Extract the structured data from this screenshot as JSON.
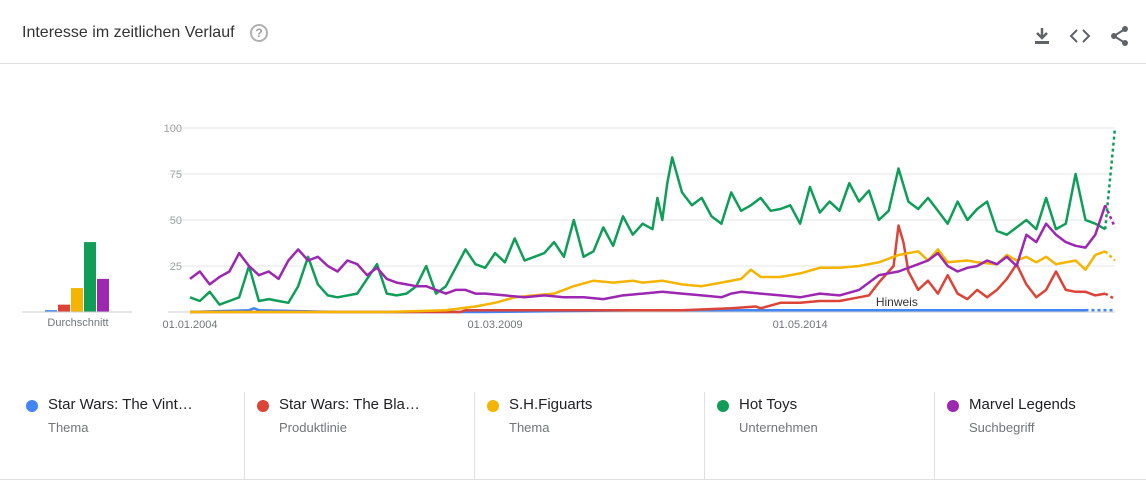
{
  "header": {
    "title": "Interesse im zeitlichen Verlauf",
    "help_icon": "help-circle-icon",
    "download_icon": "download-icon",
    "embed_icon": "code-embed-icon",
    "share_icon": "share-icon"
  },
  "chart_data": {
    "type": "line",
    "title": "Interesse im zeitlichen Verlauf",
    "ylim": [
      0,
      100
    ],
    "y_ticks": [
      100,
      75,
      50,
      25
    ],
    "x_tick_labels": [
      "01.01.2004",
      "01.03.2009",
      "01.05.2014"
    ],
    "x_tick_months": [
      0,
      62,
      124
    ],
    "note_label": "Hinweis",
    "note_month": 140,
    "x_range_months": [
      0,
      188
    ],
    "average": {
      "label": "Durchschnitt",
      "values": [
        1,
        4,
        13,
        38,
        18
      ]
    },
    "series": [
      {
        "name": "Star Wars: The Vint…",
        "category": "Thema",
        "color": "#4285f4",
        "points": [
          [
            0,
            0
          ],
          [
            12,
            1
          ],
          [
            13,
            2
          ],
          [
            14,
            1
          ],
          [
            30,
            0
          ],
          [
            60,
            0
          ],
          [
            90,
            1
          ],
          [
            100,
            1
          ],
          [
            110,
            1
          ],
          [
            120,
            1
          ],
          [
            126,
            1
          ],
          [
            140,
            1
          ],
          [
            150,
            1
          ],
          [
            165,
            1
          ],
          [
            170,
            1
          ],
          [
            178,
            1
          ],
          [
            182,
            1
          ],
          [
            188,
            1
          ]
        ]
      },
      {
        "name": "Star Wars: The Bla…",
        "category": "Produktlinie",
        "color": "#db4437",
        "points": [
          [
            0,
            0
          ],
          [
            20,
            0
          ],
          [
            40,
            0
          ],
          [
            55,
            0
          ],
          [
            56,
            1
          ],
          [
            70,
            1
          ],
          [
            80,
            1
          ],
          [
            90,
            1
          ],
          [
            100,
            1
          ],
          [
            110,
            2
          ],
          [
            115,
            3
          ],
          [
            116,
            2
          ],
          [
            120,
            5
          ],
          [
            124,
            5
          ],
          [
            128,
            6
          ],
          [
            132,
            6
          ],
          [
            136,
            8
          ],
          [
            138,
            9
          ],
          [
            140,
            16
          ],
          [
            143,
            25
          ],
          [
            144,
            47
          ],
          [
            145,
            38
          ],
          [
            146,
            22
          ],
          [
            148,
            12
          ],
          [
            150,
            17
          ],
          [
            152,
            10
          ],
          [
            154,
            20
          ],
          [
            156,
            10
          ],
          [
            158,
            7
          ],
          [
            160,
            12
          ],
          [
            162,
            8
          ],
          [
            164,
            12
          ],
          [
            166,
            18
          ],
          [
            168,
            26
          ],
          [
            170,
            15
          ],
          [
            172,
            8
          ],
          [
            174,
            12
          ],
          [
            176,
            22
          ],
          [
            178,
            12
          ],
          [
            180,
            11
          ],
          [
            182,
            11
          ],
          [
            184,
            9
          ],
          [
            186,
            10
          ],
          [
            188,
            7
          ]
        ]
      },
      {
        "name": "S.H.Figuarts",
        "category": "Thema",
        "color": "#f4b400",
        "points": [
          [
            0,
            0
          ],
          [
            40,
            0
          ],
          [
            52,
            1
          ],
          [
            58,
            3
          ],
          [
            62,
            5
          ],
          [
            66,
            8
          ],
          [
            70,
            9
          ],
          [
            74,
            10
          ],
          [
            78,
            14
          ],
          [
            82,
            17
          ],
          [
            86,
            16
          ],
          [
            90,
            17
          ],
          [
            92,
            16
          ],
          [
            96,
            17
          ],
          [
            100,
            15
          ],
          [
            104,
            14
          ],
          [
            108,
            16
          ],
          [
            112,
            18
          ],
          [
            114,
            23
          ],
          [
            116,
            19
          ],
          [
            120,
            19
          ],
          [
            124,
            21
          ],
          [
            128,
            24
          ],
          [
            132,
            24
          ],
          [
            136,
            25
          ],
          [
            140,
            27
          ],
          [
            144,
            31
          ],
          [
            148,
            33
          ],
          [
            150,
            28
          ],
          [
            152,
            34
          ],
          [
            154,
            27
          ],
          [
            158,
            28
          ],
          [
            160,
            27
          ],
          [
            164,
            26
          ],
          [
            166,
            31
          ],
          [
            168,
            28
          ],
          [
            170,
            30
          ],
          [
            172,
            27
          ],
          [
            174,
            30
          ],
          [
            176,
            26
          ],
          [
            180,
            28
          ],
          [
            182,
            23
          ],
          [
            184,
            31
          ],
          [
            186,
            33
          ],
          [
            188,
            28
          ]
        ]
      },
      {
        "name": "Hot Toys",
        "category": "Unternehmen",
        "color": "#0f9d58",
        "points": [
          [
            0,
            8
          ],
          [
            2,
            6
          ],
          [
            4,
            11
          ],
          [
            6,
            4
          ],
          [
            8,
            6
          ],
          [
            10,
            8
          ],
          [
            12,
            25
          ],
          [
            14,
            6
          ],
          [
            16,
            7
          ],
          [
            18,
            6
          ],
          [
            20,
            5
          ],
          [
            22,
            14
          ],
          [
            24,
            30
          ],
          [
            26,
            15
          ],
          [
            28,
            9
          ],
          [
            30,
            8
          ],
          [
            34,
            10
          ],
          [
            36,
            18
          ],
          [
            38,
            26
          ],
          [
            40,
            10
          ],
          [
            42,
            9
          ],
          [
            44,
            10
          ],
          [
            46,
            14
          ],
          [
            48,
            25
          ],
          [
            50,
            10
          ],
          [
            52,
            14
          ],
          [
            54,
            24
          ],
          [
            56,
            34
          ],
          [
            58,
            26
          ],
          [
            60,
            24
          ],
          [
            62,
            32
          ],
          [
            64,
            27
          ],
          [
            66,
            40
          ],
          [
            68,
            28
          ],
          [
            70,
            30
          ],
          [
            72,
            32
          ],
          [
            74,
            38
          ],
          [
            76,
            30
          ],
          [
            78,
            50
          ],
          [
            80,
            30
          ],
          [
            82,
            33
          ],
          [
            84,
            46
          ],
          [
            86,
            36
          ],
          [
            88,
            52
          ],
          [
            90,
            42
          ],
          [
            92,
            48
          ],
          [
            94,
            45
          ],
          [
            95,
            62
          ],
          [
            96,
            50
          ],
          [
            97,
            70
          ],
          [
            98,
            84
          ],
          [
            100,
            65
          ],
          [
            102,
            58
          ],
          [
            104,
            62
          ],
          [
            106,
            52
          ],
          [
            108,
            48
          ],
          [
            110,
            65
          ],
          [
            112,
            55
          ],
          [
            114,
            58
          ],
          [
            116,
            62
          ],
          [
            118,
            55
          ],
          [
            120,
            56
          ],
          [
            122,
            58
          ],
          [
            124,
            48
          ],
          [
            126,
            68
          ],
          [
            128,
            54
          ],
          [
            130,
            60
          ],
          [
            132,
            55
          ],
          [
            134,
            70
          ],
          [
            136,
            60
          ],
          [
            138,
            66
          ],
          [
            140,
            50
          ],
          [
            142,
            55
          ],
          [
            144,
            78
          ],
          [
            146,
            60
          ],
          [
            148,
            56
          ],
          [
            150,
            62
          ],
          [
            152,
            55
          ],
          [
            154,
            48
          ],
          [
            156,
            60
          ],
          [
            158,
            50
          ],
          [
            160,
            56
          ],
          [
            162,
            60
          ],
          [
            164,
            44
          ],
          [
            166,
            42
          ],
          [
            168,
            46
          ],
          [
            170,
            50
          ],
          [
            172,
            45
          ],
          [
            174,
            62
          ],
          [
            176,
            45
          ],
          [
            178,
            48
          ],
          [
            180,
            75
          ],
          [
            182,
            50
          ],
          [
            184,
            48
          ],
          [
            186,
            45
          ],
          [
            188,
            100
          ]
        ]
      },
      {
        "name": "Marvel Legends",
        "category": "Suchbegriff",
        "color": "#9c27b0",
        "points": [
          [
            0,
            18
          ],
          [
            2,
            22
          ],
          [
            4,
            15
          ],
          [
            6,
            19
          ],
          [
            8,
            22
          ],
          [
            10,
            32
          ],
          [
            12,
            25
          ],
          [
            14,
            20
          ],
          [
            16,
            22
          ],
          [
            18,
            18
          ],
          [
            20,
            28
          ],
          [
            22,
            34
          ],
          [
            24,
            28
          ],
          [
            26,
            30
          ],
          [
            28,
            25
          ],
          [
            30,
            22
          ],
          [
            32,
            28
          ],
          [
            34,
            26
          ],
          [
            36,
            20
          ],
          [
            38,
            24
          ],
          [
            40,
            18
          ],
          [
            42,
            16
          ],
          [
            44,
            15
          ],
          [
            46,
            14
          ],
          [
            48,
            14
          ],
          [
            50,
            12
          ],
          [
            52,
            10
          ],
          [
            54,
            12
          ],
          [
            56,
            12
          ],
          [
            58,
            10
          ],
          [
            60,
            10
          ],
          [
            64,
            9
          ],
          [
            68,
            8
          ],
          [
            72,
            9
          ],
          [
            76,
            8
          ],
          [
            80,
            8
          ],
          [
            84,
            7
          ],
          [
            88,
            9
          ],
          [
            92,
            10
          ],
          [
            96,
            11
          ],
          [
            100,
            10
          ],
          [
            104,
            9
          ],
          [
            108,
            8
          ],
          [
            110,
            10
          ],
          [
            112,
            11
          ],
          [
            116,
            10
          ],
          [
            120,
            9
          ],
          [
            124,
            8
          ],
          [
            128,
            10
          ],
          [
            132,
            9
          ],
          [
            136,
            12
          ],
          [
            140,
            20
          ],
          [
            144,
            22
          ],
          [
            148,
            26
          ],
          [
            150,
            28
          ],
          [
            152,
            32
          ],
          [
            154,
            25
          ],
          [
            156,
            22
          ],
          [
            158,
            24
          ],
          [
            160,
            25
          ],
          [
            162,
            28
          ],
          [
            164,
            26
          ],
          [
            166,
            30
          ],
          [
            168,
            25
          ],
          [
            170,
            42
          ],
          [
            172,
            38
          ],
          [
            174,
            48
          ],
          [
            176,
            42
          ],
          [
            178,
            38
          ],
          [
            180,
            36
          ],
          [
            182,
            35
          ],
          [
            184,
            42
          ],
          [
            186,
            58
          ],
          [
            188,
            46
          ]
        ]
      }
    ]
  },
  "legend": {
    "items": [
      {
        "name": "Star Wars: The Vint…",
        "sub": "Thema",
        "color": "#4285f4"
      },
      {
        "name": "Star Wars: The Bla…",
        "sub": "Produktlinie",
        "color": "#db4437"
      },
      {
        "name": "S.H.Figuarts",
        "sub": "Thema",
        "color": "#f4b400"
      },
      {
        "name": "Hot Toys",
        "sub": "Unternehmen",
        "color": "#0f9d58"
      },
      {
        "name": "Marvel Legends",
        "sub": "Suchbegriff",
        "color": "#9c27b0"
      }
    ]
  }
}
